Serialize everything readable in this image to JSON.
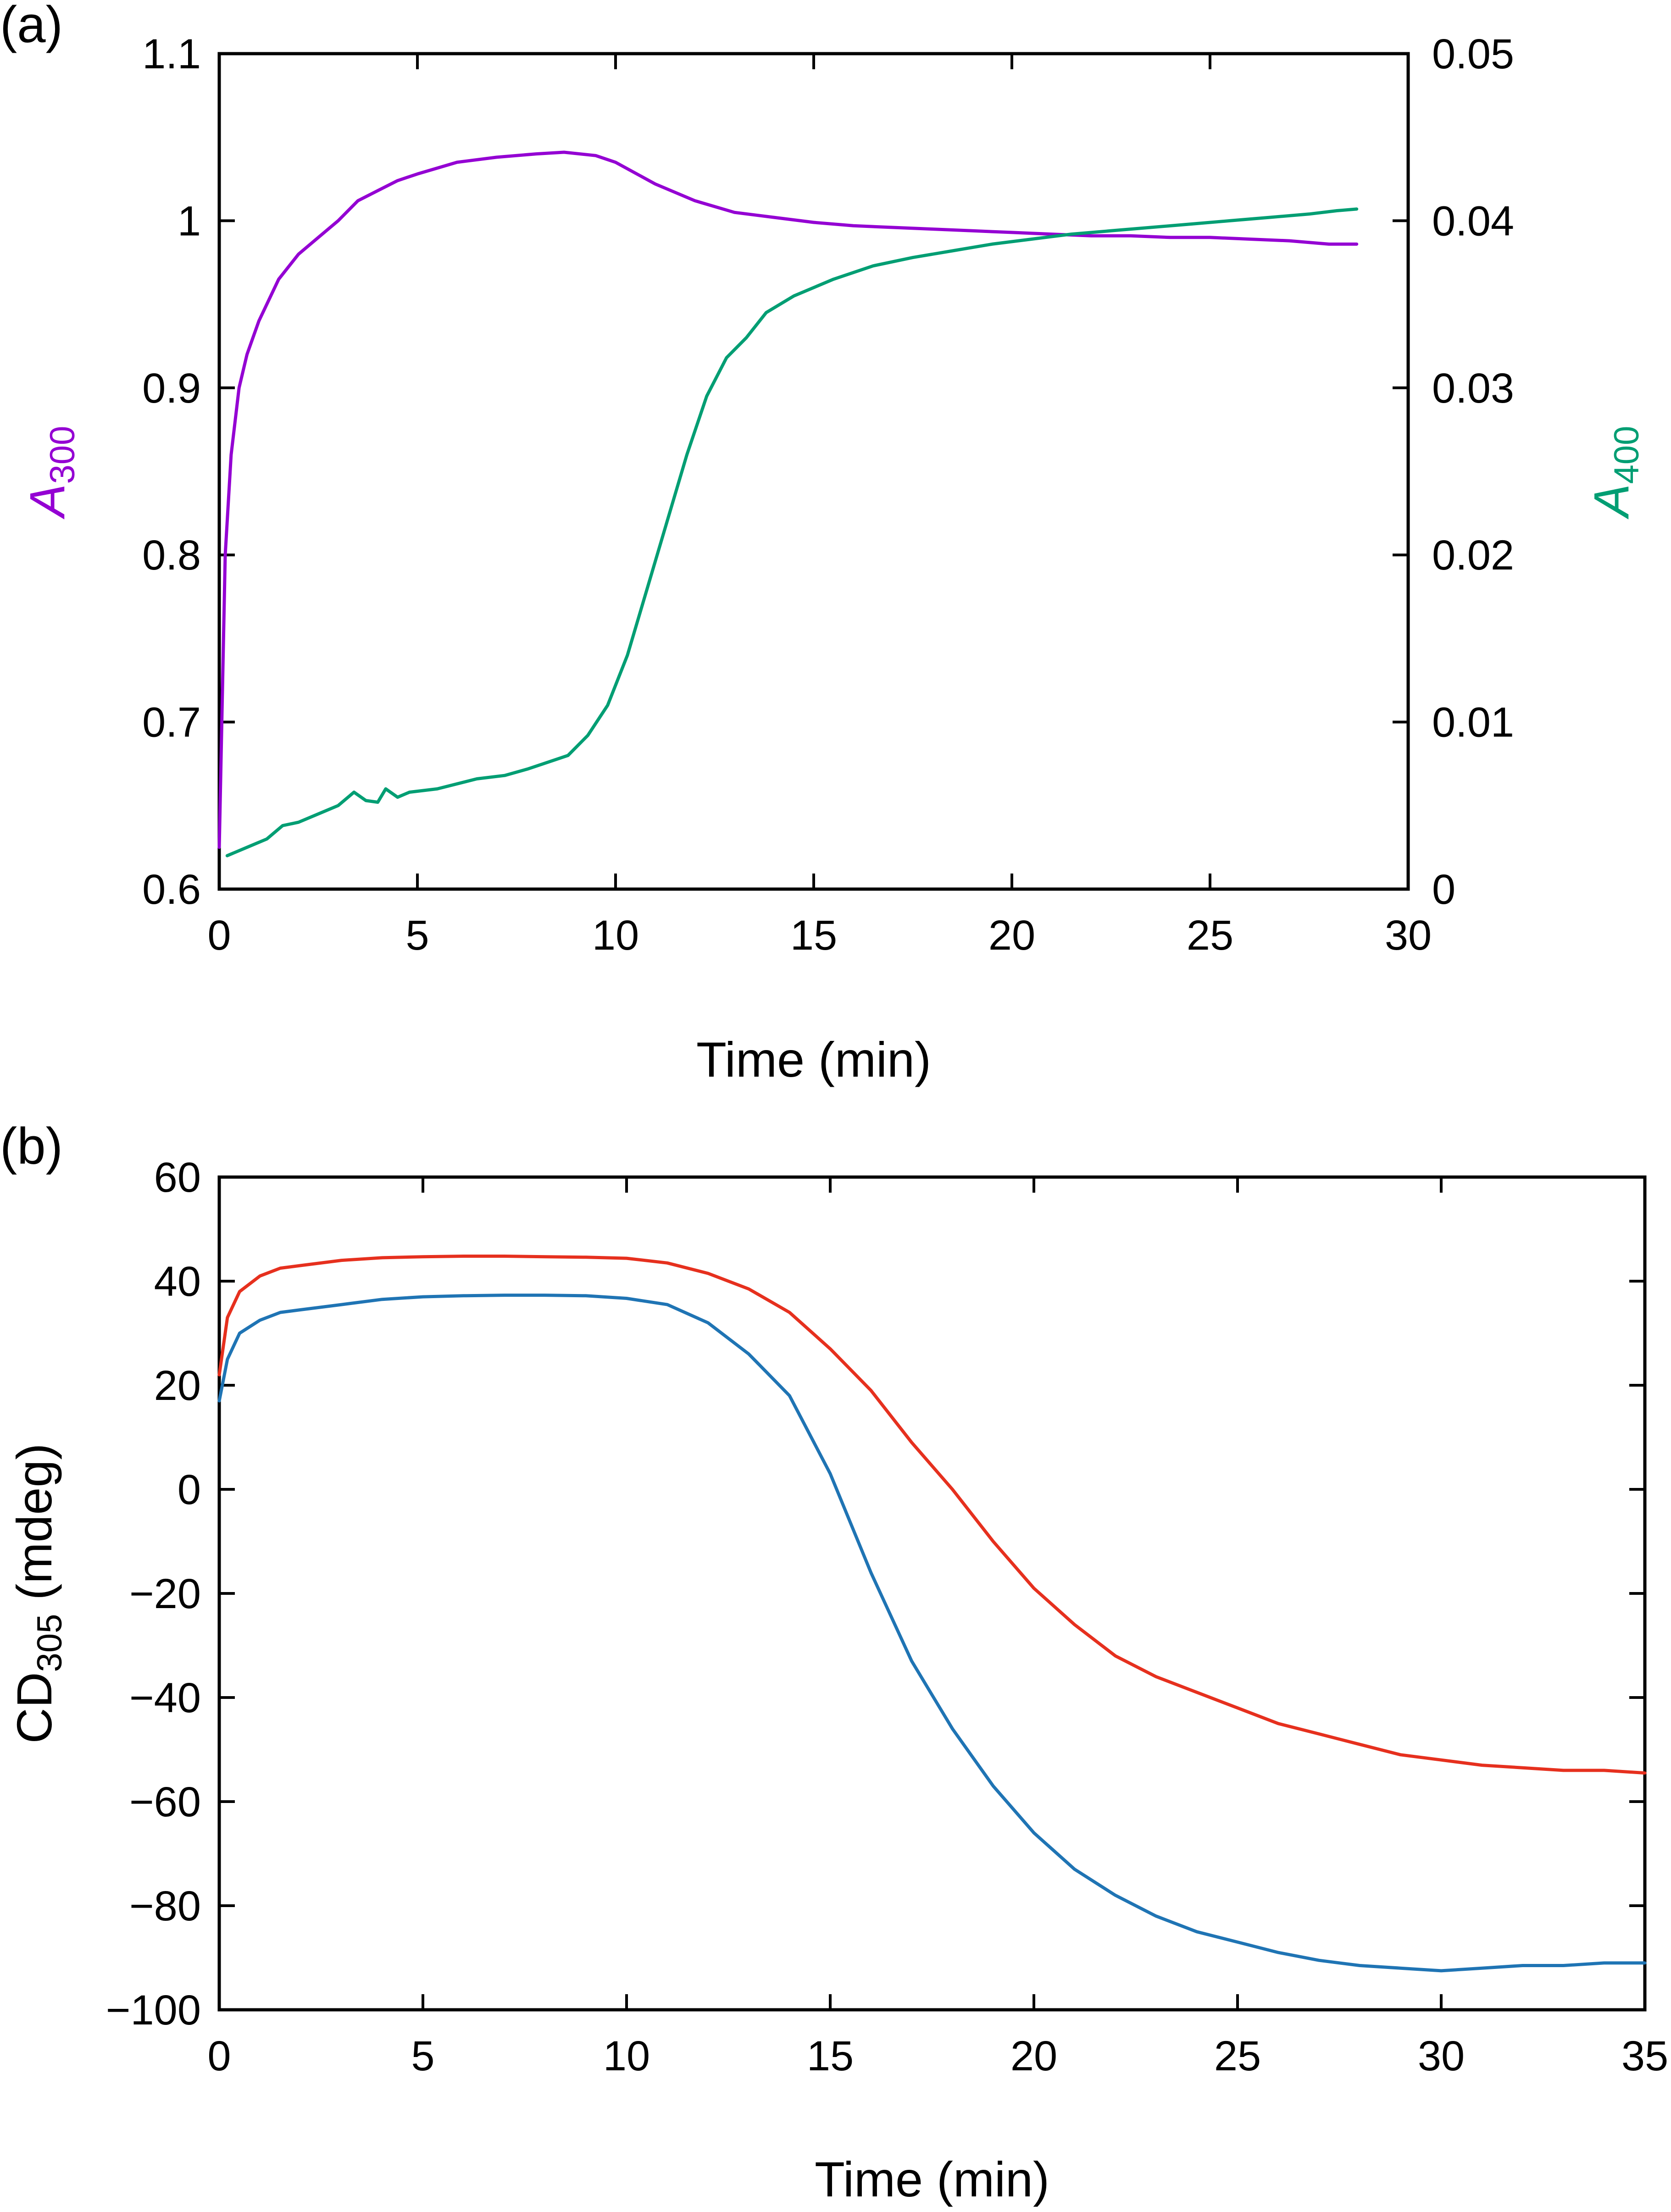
{
  "chart_data": [
    {
      "panel_label": "(a)",
      "type": "line",
      "xlabel": "Time (min)",
      "xlim": [
        0,
        30
      ],
      "xticks": [
        "0",
        "5",
        "10",
        "15",
        "20",
        "25",
        "30"
      ],
      "ylabel_left": {
        "main": "A",
        "sub": "300",
        "color": "#9400D3"
      },
      "ylim_left": [
        0.6,
        1.1
      ],
      "yticks_left": [
        "0.6",
        "0.7",
        "0.8",
        "0.9",
        "1",
        "1.1"
      ],
      "ylabel_right": {
        "main": "A",
        "sub": "400",
        "color": "#009E73"
      },
      "ylim_right": [
        0,
        0.05
      ],
      "yticks_right": [
        "0",
        "0.01",
        "0.02",
        "0.03",
        "0.04",
        "0.05"
      ],
      "series": [
        {
          "name": "A300",
          "axis": "left",
          "color": "#9400D3",
          "x": [
            0,
            0.15,
            0.3,
            0.5,
            0.7,
            1,
            1.5,
            2,
            2.5,
            3,
            3.5,
            4,
            4.5,
            5,
            6,
            7,
            8,
            8.7,
            9.5,
            10,
            11,
            12,
            13,
            14,
            15,
            16,
            17,
            18,
            19,
            20,
            21,
            22,
            23,
            24,
            25,
            26,
            27,
            28,
            28.7
          ],
          "y": [
            0.625,
            0.8,
            0.86,
            0.9,
            0.92,
            0.94,
            0.965,
            0.98,
            0.99,
            1.0,
            1.012,
            1.018,
            1.024,
            1.028,
            1.035,
            1.038,
            1.04,
            1.041,
            1.039,
            1.035,
            1.022,
            1.012,
            1.005,
            1.002,
            0.999,
            0.997,
            0.996,
            0.995,
            0.994,
            0.993,
            0.992,
            0.991,
            0.991,
            0.99,
            0.99,
            0.989,
            0.988,
            0.986,
            0.986
          ]
        },
        {
          "name": "A400",
          "axis": "right",
          "color": "#009E73",
          "x": [
            0.2,
            0.7,
            1.2,
            1.6,
            2,
            2.5,
            3,
            3.4,
            3.7,
            4,
            4.2,
            4.5,
            4.8,
            5.5,
            6.5,
            7.2,
            7.8,
            8.3,
            8.8,
            9.3,
            9.8,
            10.3,
            10.8,
            11.3,
            11.8,
            12.3,
            12.8,
            13.3,
            13.8,
            14.5,
            15.5,
            16.5,
            17.5,
            18.5,
            19.5,
            20.5,
            21.5,
            22.5,
            23.5,
            24.5,
            25.5,
            26.5,
            27.5,
            28.2,
            28.7
          ],
          "y": [
            0.002,
            0.0025,
            0.003,
            0.0038,
            0.004,
            0.0045,
            0.005,
            0.0058,
            0.0053,
            0.0052,
            0.006,
            0.0055,
            0.0058,
            0.006,
            0.0066,
            0.0068,
            0.0072,
            0.0076,
            0.008,
            0.0092,
            0.011,
            0.014,
            0.018,
            0.022,
            0.026,
            0.0295,
            0.0318,
            0.033,
            0.0345,
            0.0355,
            0.0365,
            0.0373,
            0.0378,
            0.0382,
            0.0386,
            0.0389,
            0.0392,
            0.0394,
            0.0396,
            0.0398,
            0.04,
            0.0402,
            0.0404,
            0.0406,
            0.0407
          ]
        }
      ]
    },
    {
      "panel_label": "(b)",
      "type": "line",
      "xlabel": "Time (min)",
      "xlim": [
        0,
        35
      ],
      "xticks": [
        "0",
        "5",
        "10",
        "15",
        "20",
        "25",
        "30",
        "35"
      ],
      "ylabel": {
        "main": "CD",
        "sub": "305",
        "suffix": " (mdeg)"
      },
      "ylim": [
        -100,
        60
      ],
      "yticks": [
        "−100",
        "−80",
        "−60",
        "−40",
        "−20",
        "0",
        "20",
        "40",
        "60"
      ],
      "series": [
        {
          "name": "red",
          "color": "#E6301E",
          "x": [
            0,
            0.2,
            0.5,
            1,
            1.5,
            2,
            3,
            4,
            5,
            6,
            7,
            8,
            9,
            10,
            11,
            12,
            13,
            14,
            15,
            16,
            17,
            18,
            19,
            20,
            21,
            22,
            23,
            24,
            25,
            26,
            27,
            28,
            29,
            30,
            31,
            32,
            33,
            34,
            35
          ],
          "y": [
            22,
            33,
            38,
            41,
            42.5,
            43,
            44,
            44.5,
            44.7,
            44.8,
            44.8,
            44.7,
            44.6,
            44.4,
            43.5,
            41.5,
            38.5,
            34,
            27,
            19,
            9,
            0,
            -10,
            -19,
            -26,
            -32,
            -36,
            -39,
            -42,
            -45,
            -47,
            -49,
            -51,
            -52,
            -53,
            -53.5,
            -54,
            -54,
            -54.5
          ]
        },
        {
          "name": "blue",
          "color": "#1F74B4",
          "x": [
            0,
            0.2,
            0.5,
            1,
            1.5,
            2,
            3,
            4,
            5,
            6,
            7,
            8,
            9,
            10,
            11,
            12,
            13,
            14,
            15,
            16,
            17,
            18,
            19,
            20,
            21,
            22,
            23,
            24,
            25,
            26,
            27,
            28,
            29,
            30,
            31,
            32,
            33,
            34,
            35
          ],
          "y": [
            17,
            25,
            30,
            32.5,
            34,
            34.5,
            35.5,
            36.5,
            37,
            37.2,
            37.3,
            37.3,
            37.2,
            36.7,
            35.5,
            32,
            26,
            18,
            3,
            -16,
            -33,
            -46,
            -57,
            -66,
            -73,
            -78,
            -82,
            -85,
            -87,
            -89,
            -90.5,
            -91.5,
            -92,
            -92.5,
            -92,
            -91.5,
            -91.5,
            -91,
            -91
          ]
        }
      ]
    }
  ]
}
